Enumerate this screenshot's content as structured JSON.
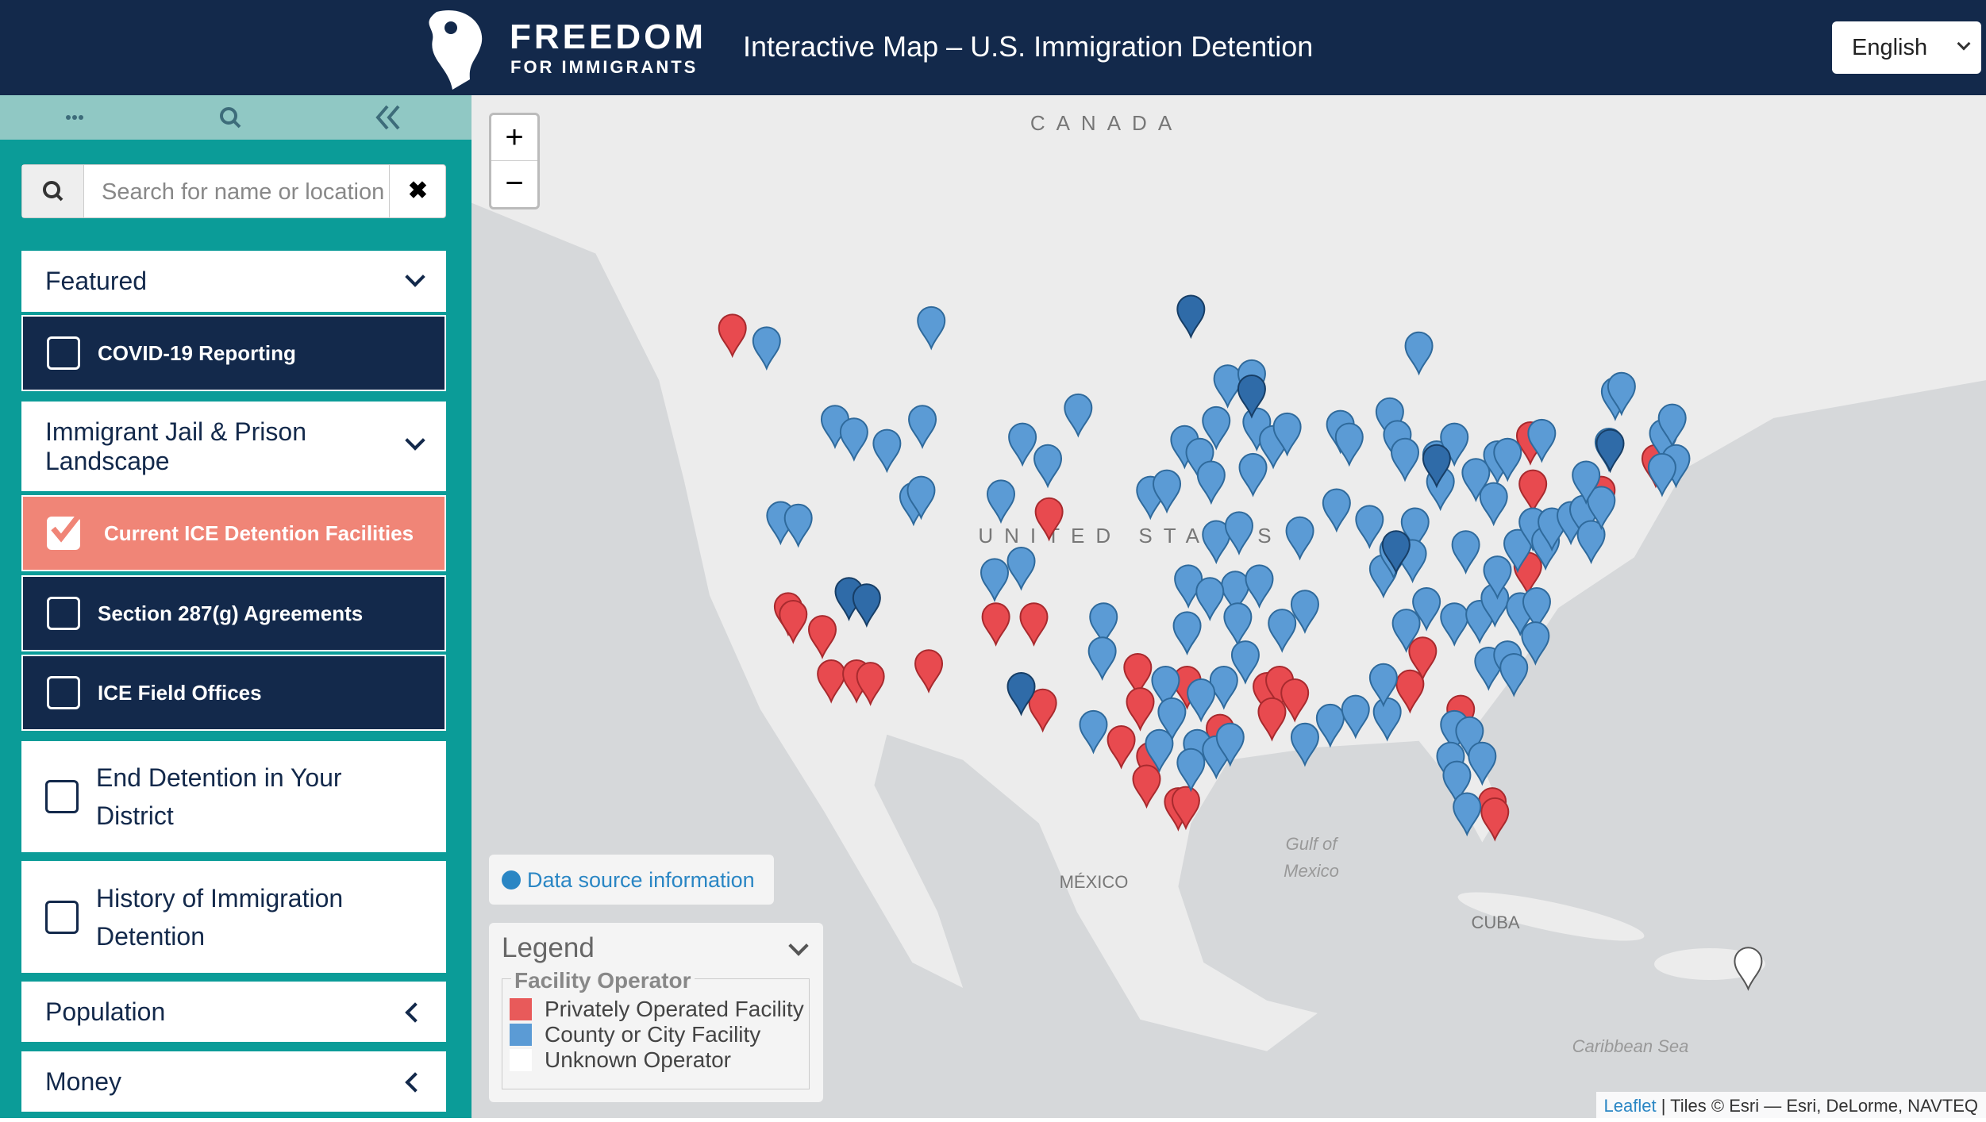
{
  "header": {
    "logo_line1": "FREEDOM",
    "logo_line2": "FOR IMMIGRANTS",
    "title": "Interactive Map – U.S. Immigration Detention",
    "language": "English"
  },
  "sidebar": {
    "search_placeholder": "Search for name or location",
    "groups": [
      {
        "title": "Featured",
        "items": [
          "COVID-19 Reporting"
        ]
      },
      {
        "title": "Immigrant Jail & Prison Landscape",
        "items": [
          "Current ICE Detention Facilities",
          "Section 287(g) Agreements",
          "ICE Field Offices"
        ]
      }
    ],
    "links": [
      "End Detention in Your District",
      "History of Immigration Detention"
    ],
    "collapsed": [
      "Population",
      "Money"
    ]
  },
  "map": {
    "zoom": [
      "+",
      "−"
    ],
    "labels": {
      "canada": "CANADA",
      "united_states": "UNITED STATES",
      "mexico": "MÉXICO",
      "gulf": [
        "Gulf of",
        "Mexico"
      ],
      "cuba": "CUBA",
      "caribbean": "Caribbean Sea"
    },
    "data_source": "Data source information",
    "legend": {
      "title": "Legend",
      "group": "Facility Operator",
      "items": [
        "Privately Operated Facility",
        "County or City Facility",
        "Unknown Operator"
      ]
    },
    "attribution": {
      "link": "Leaflet",
      "text": "| Tiles © Esri — Esri, DeLorme, NAVTEQ"
    }
  }
}
